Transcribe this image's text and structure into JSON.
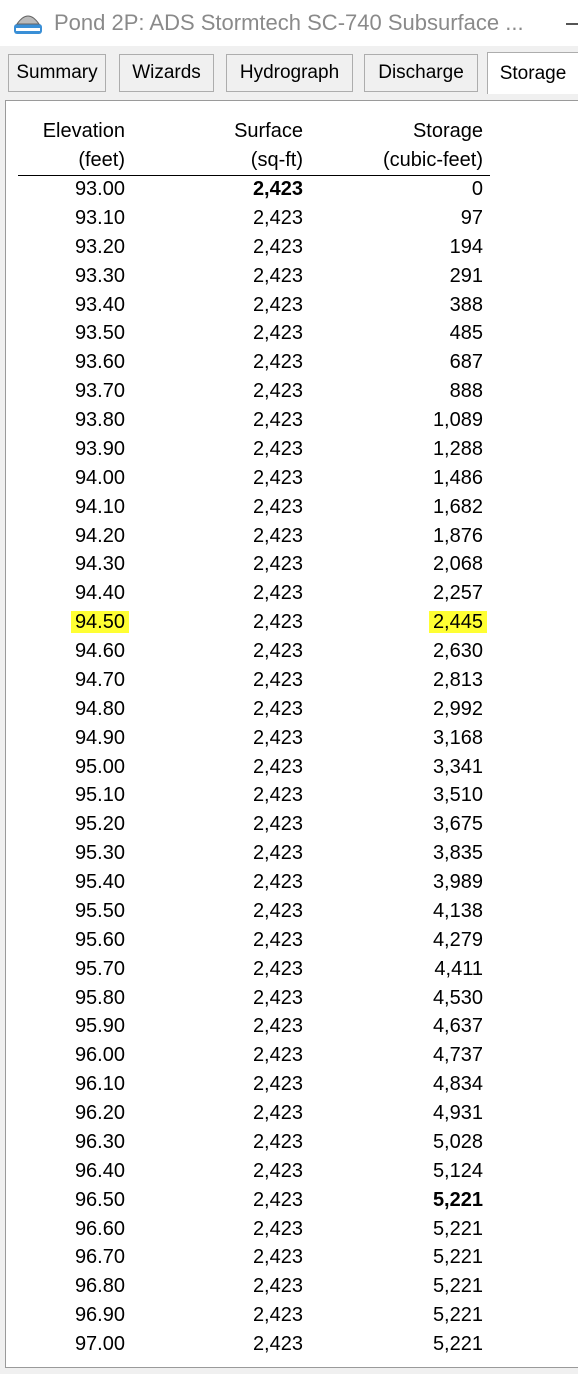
{
  "window": {
    "title": "Pond 2P: ADS Stormtech SC-740 Subsurface ...",
    "tabs": [
      "Summary",
      "Wizards",
      "Hydrograph",
      "Discharge",
      "Storage"
    ],
    "active_tab": 4
  },
  "table": {
    "headers": [
      [
        "Elevation",
        "(feet)"
      ],
      [
        "Surface",
        "(sq-ft)"
      ],
      [
        "Storage",
        "(cubic-feet)"
      ]
    ],
    "rows": [
      [
        "93.00",
        "2,423",
        "0"
      ],
      [
        "93.10",
        "2,423",
        "97"
      ],
      [
        "93.20",
        "2,423",
        "194"
      ],
      [
        "93.30",
        "2,423",
        "291"
      ],
      [
        "93.40",
        "2,423",
        "388"
      ],
      [
        "93.50",
        "2,423",
        "485"
      ],
      [
        "93.60",
        "2,423",
        "687"
      ],
      [
        "93.70",
        "2,423",
        "888"
      ],
      [
        "93.80",
        "2,423",
        "1,089"
      ],
      [
        "93.90",
        "2,423",
        "1,288"
      ],
      [
        "94.00",
        "2,423",
        "1,486"
      ],
      [
        "94.10",
        "2,423",
        "1,682"
      ],
      [
        "94.20",
        "2,423",
        "1,876"
      ],
      [
        "94.30",
        "2,423",
        "2,068"
      ],
      [
        "94.40",
        "2,423",
        "2,257"
      ],
      [
        "94.50",
        "2,423",
        "2,445"
      ],
      [
        "94.60",
        "2,423",
        "2,630"
      ],
      [
        "94.70",
        "2,423",
        "2,813"
      ],
      [
        "94.80",
        "2,423",
        "2,992"
      ],
      [
        "94.90",
        "2,423",
        "3,168"
      ],
      [
        "95.00",
        "2,423",
        "3,341"
      ],
      [
        "95.10",
        "2,423",
        "3,510"
      ],
      [
        "95.20",
        "2,423",
        "3,675"
      ],
      [
        "95.30",
        "2,423",
        "3,835"
      ],
      [
        "95.40",
        "2,423",
        "3,989"
      ],
      [
        "95.50",
        "2,423",
        "4,138"
      ],
      [
        "95.60",
        "2,423",
        "4,279"
      ],
      [
        "95.70",
        "2,423",
        "4,411"
      ],
      [
        "95.80",
        "2,423",
        "4,530"
      ],
      [
        "95.90",
        "2,423",
        "4,637"
      ],
      [
        "96.00",
        "2,423",
        "4,737"
      ],
      [
        "96.10",
        "2,423",
        "4,834"
      ],
      [
        "96.20",
        "2,423",
        "4,931"
      ],
      [
        "96.30",
        "2,423",
        "5,028"
      ],
      [
        "96.40",
        "2,423",
        "5,124"
      ],
      [
        "96.50",
        "2,423",
        "5,221"
      ],
      [
        "96.60",
        "2,423",
        "5,221"
      ],
      [
        "96.70",
        "2,423",
        "5,221"
      ],
      [
        "96.80",
        "2,423",
        "5,221"
      ],
      [
        "96.90",
        "2,423",
        "5,221"
      ],
      [
        "97.00",
        "2,423",
        "5,221"
      ]
    ],
    "bold_cells": [
      [
        0,
        1
      ],
      [
        35,
        2
      ]
    ],
    "highlighted_cells": [
      [
        15,
        0
      ],
      [
        15,
        2
      ]
    ],
    "highlight_color": "#ffff33"
  }
}
